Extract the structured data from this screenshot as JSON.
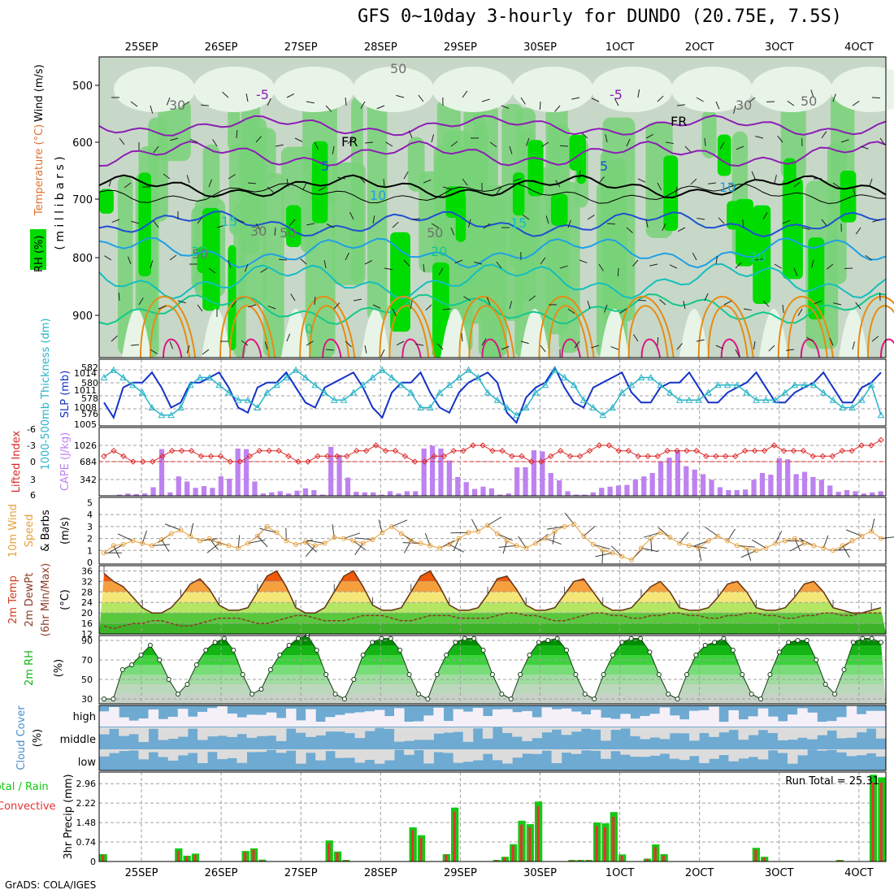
{
  "title": "GFS 0~10day 3-hourly for DUNDO (20.75E, 7.5S)",
  "credit": "GrADS: COLA/IGES",
  "x_axis": {
    "dates": [
      "25SEP",
      "26SEP",
      "27SEP",
      "28SEP",
      "29SEP",
      "30SEP",
      "1OCT",
      "2OCT",
      "3OCT",
      "4OCT"
    ],
    "top_labels": [
      "25SEP",
      "26SEP",
      "27SEP",
      "28SEP",
      "29SEP",
      "30SEP",
      "1OCT",
      "2OCT",
      "3OCT",
      "4OCT"
    ],
    "bottom_labels": [
      "25SEP",
      "26SEP",
      "27SEP",
      "28SEP",
      "29SEP",
      "30SEP",
      "1OCT",
      "2OCT",
      "3OCT",
      "4OCT"
    ]
  },
  "colors": {
    "rh_dark": "#00dc00",
    "rh_mid": "#78d278",
    "rh_light": "#c8d8c8",
    "rh_pale": "#e8f4e8",
    "temp_purple": "#8c1eb4",
    "temp_black": "#000000",
    "temp_blue": "#1e50d2",
    "temp_sky": "#1ea0e6",
    "temp_teal": "#14bebe",
    "temp_green": "#14c88c",
    "temp_orange": "#e68c14",
    "temp_magenta": "#dc1482",
    "slp_line": "#1432c8",
    "thickness_line": "#28b4c8",
    "cape_bar": "#be82f0",
    "li_line": "#dc2828",
    "wind_speed": "#e6a03c",
    "barb": "#3c3c3c",
    "cloud_blue": "#6eaad2",
    "cloud_gray": "#dcdcdc",
    "cloud_white": "#f5f0f8",
    "precip_total": "#14c814",
    "precip_conv": "#e63232"
  },
  "panels": {
    "profile": {
      "ylabel_rh": "RH (%)",
      "ylabel_temp": "Temperature (°C)",
      "ylabel_wind": "Wind (m/s)",
      "ylabel_pressure": "( m i l l i b a r s )",
      "y_ticks": [
        "500",
        "600",
        "700",
        "800",
        "900"
      ],
      "contour_labels": [
        "-5",
        "-5",
        "FR",
        "FR",
        "5",
        "5",
        "10",
        "10",
        "15",
        "15",
        "20",
        "20",
        "20",
        "50",
        "50",
        "30",
        "30",
        "50",
        "50",
        "30",
        "50",
        "0"
      ]
    },
    "slp": {
      "ylabel_left": "1000-500mb Thickness (dm)",
      "ylabel_right": "SLP (mb)",
      "left_ticks": [
        "582",
        "580",
        "578",
        "576"
      ],
      "right_ticks": [
        "1014",
        "1011",
        "1008",
        "1005"
      ]
    },
    "cape": {
      "ylabel_left": "Lifted Index",
      "ylabel_right": "CAPE (J/kg)",
      "left_ticks": [
        "-6",
        "-3",
        "0",
        "3",
        "6"
      ],
      "right_ticks": [
        "1026",
        "684",
        "342"
      ]
    },
    "wind10m": {
      "ylabel_a": "10m Wind",
      "ylabel_b": "Speed",
      "ylabel_c": "& Barbs",
      "unit": "(m/s)",
      "ticks": [
        "5",
        "4",
        "3",
        "2",
        "1",
        "0"
      ]
    },
    "temp2m": {
      "ylabel_a": "2m Temp",
      "ylabel_b": "2m DewPt",
      "ylabel_c": "(6hr Min/Max)",
      "unit": "(°C)",
      "ticks": [
        "36",
        "32",
        "28",
        "24",
        "20",
        "16",
        "12"
      ]
    },
    "rh2m": {
      "ylabel": "2m RH",
      "unit": "(%)",
      "ticks": [
        "90",
        "70",
        "50",
        "30"
      ]
    },
    "cloud": {
      "ylabel": "Cloud Cover",
      "unit": "(%)",
      "levels": [
        "high",
        "middle",
        "low"
      ]
    },
    "precip": {
      "ylabel_a": "Total / Rain",
      "ylabel_b": "Convective",
      "ylabel_c": "3hr Precip (mm)",
      "ticks": [
        "2.96",
        "2.22",
        "1.48",
        "0.74",
        "0"
      ],
      "run_total": "Run Total = 25.31"
    }
  },
  "chart_data": [
    {
      "type": "line",
      "panel": "slp_thickness",
      "series": [
        {
          "name": "SLP (mb)",
          "axis": "right",
          "values": [
            1008,
            1005,
            1011,
            1012,
            1012,
            1014,
            1011,
            1007,
            1008,
            1012,
            1012,
            1013,
            1014,
            1011,
            1007,
            1006,
            1011,
            1012,
            1012,
            1014,
            1011,
            1008,
            1007,
            1011,
            1012,
            1013,
            1014,
            1011,
            1007,
            1005,
            1010,
            1012,
            1012,
            1014,
            1010,
            1007,
            1006,
            1010,
            1012,
            1013,
            1014,
            1012,
            1006,
            1004,
            1009,
            1011,
            1012,
            1015,
            1011,
            1008,
            1007,
            1011,
            1012,
            1013,
            1014,
            1010,
            1008,
            1008,
            1011,
            1012,
            1012,
            1014,
            1011,
            1008,
            1008,
            1010,
            1011,
            1012,
            1014,
            1011,
            1008,
            1008,
            1010,
            1011,
            1012,
            1014,
            1011,
            1008,
            1008,
            1011,
            1012,
            1014
          ]
        },
        {
          "name": "1000-500mb Thickness (dm)",
          "axis": "left",
          "values": [
            581,
            582,
            581,
            580,
            579,
            577,
            576,
            576,
            577,
            580,
            581,
            581,
            580,
            579,
            578,
            578,
            577,
            579,
            580,
            581,
            582,
            581,
            580,
            579,
            578,
            578,
            579,
            580,
            581,
            582,
            581,
            580,
            579,
            577,
            577,
            579,
            580,
            581,
            582,
            581,
            579,
            578,
            577,
            576,
            577,
            579,
            580,
            582,
            581,
            580,
            578,
            577,
            576,
            577,
            579,
            580,
            581,
            581,
            580,
            579,
            578,
            578,
            578,
            579,
            580,
            580,
            580,
            579,
            578,
            578,
            578,
            579,
            580,
            580,
            580,
            579,
            578,
            577,
            577,
            578,
            580,
            576
          ]
        }
      ],
      "ylim_left": [
        575,
        583
      ],
      "ylim_right": [
        1004,
        1016
      ]
    },
    {
      "type": "bar",
      "panel": "cape_li",
      "series": [
        {
          "name": "CAPE (J/kg)",
          "values": [
            0,
            0,
            20,
            40,
            30,
            40,
            150,
            820,
            60,
            340,
            250,
            140,
            170,
            140,
            340,
            300,
            830,
            820,
            250,
            40,
            60,
            80,
            40,
            90,
            130,
            100,
            20,
            860,
            720,
            320,
            70,
            60,
            60,
            20,
            80,
            40,
            80,
            80,
            830,
            880,
            830,
            620,
            330,
            240,
            120,
            160,
            130,
            20,
            40,
            500,
            500,
            800,
            780,
            400,
            270,
            80,
            20,
            20,
            60,
            140,
            160,
            180,
            190,
            290,
            340,
            400,
            600,
            670,
            800,
            520,
            460,
            380,
            280,
            150,
            100,
            100,
            110,
            280,
            400,
            370,
            660,
            640,
            380,
            420,
            330,
            280,
            180,
            70,
            100,
            80,
            40,
            60,
            80
          ]
        },
        {
          "name": "Lifted Index",
          "values": [
            -1,
            -2,
            -1,
            0,
            0,
            0,
            -1,
            -2,
            -2,
            -2,
            -1,
            -1,
            -1,
            0,
            0,
            -1,
            -2,
            -2,
            -2,
            -1,
            0,
            0,
            -1,
            -1,
            -1,
            -1,
            -2,
            -2,
            -3,
            -2,
            -2,
            -1,
            0,
            0,
            -1,
            -1,
            -2,
            -2,
            -3,
            -3,
            -2,
            -2,
            -1,
            -1,
            0,
            0,
            -1,
            -2,
            -1,
            -1,
            -2,
            -3,
            -3,
            -2,
            -2,
            -1,
            -1,
            -1,
            -2,
            -2,
            -2,
            -2,
            -1,
            -1,
            -1,
            -1,
            -2,
            -2,
            -2,
            -3,
            -2,
            -2,
            -2,
            -1,
            -1,
            -1,
            -2,
            -2,
            -3,
            -3,
            -4
          ]
        }
      ],
      "ylim_cape": [
        0,
        1200
      ],
      "ylim_li": [
        6,
        -6
      ]
    },
    {
      "type": "line",
      "panel": "wind10m",
      "series": [
        {
          "name": "10m Wind Speed",
          "values": [
            0.8,
            1.4,
            1.5,
            1.8,
            1.6,
            1.4,
            1.9,
            2.4,
            2.7,
            2.2,
            1.8,
            2.0,
            1.6,
            1.4,
            1.2,
            1.6,
            2.2,
            3.0,
            2.5,
            1.8,
            1.5,
            1.7,
            1.4,
            1.6,
            2.1,
            2.0,
            1.8,
            1.6,
            1.9,
            2.5,
            3.0,
            2.4,
            1.8,
            1.6,
            1.4,
            1.2,
            1.5,
            2.0,
            2.5,
            2.6,
            3.1,
            2.4,
            1.8,
            1.4,
            1.2,
            1.6,
            2.0,
            2.6,
            3.0,
            3.2,
            2.2,
            1.5,
            1.0,
            0.8,
            0.5,
            0.2,
            1.2,
            2.0,
            2.5,
            2.1,
            1.6,
            1.4,
            1.2,
            1.8,
            2.2,
            1.8,
            1.4,
            1.2,
            1.0,
            1.2,
            1.6,
            1.8,
            2.0,
            1.6,
            1.4,
            1.2,
            1.0,
            1.4,
            1.8,
            2.2,
            2.6,
            2.0
          ]
        }
      ],
      "ylim": [
        0,
        5
      ]
    },
    {
      "type": "area",
      "panel": "temp2m",
      "series": [
        {
          "name": "2m Temp",
          "values": [
            35,
            32,
            30,
            26,
            22,
            20,
            20,
            22,
            26,
            31,
            33,
            29,
            23,
            21,
            21,
            22,
            28,
            34,
            36,
            30,
            22,
            20,
            20,
            22,
            28,
            34,
            36,
            30,
            23,
            21,
            21,
            22,
            28,
            34,
            36,
            30,
            23,
            21,
            21,
            22,
            27,
            33,
            34,
            29,
            23,
            21,
            21,
            22,
            27,
            32,
            33,
            28,
            23,
            21,
            21,
            22,
            26,
            30,
            32,
            28,
            22,
            21,
            21,
            22,
            26,
            31,
            32,
            28,
            22,
            21,
            21,
            22,
            26,
            31,
            32,
            28,
            22,
            21,
            20,
            20,
            21,
            22
          ]
        },
        {
          "name": "2m DewPt",
          "values": [
            15,
            14,
            15,
            16,
            16,
            17,
            17,
            16,
            15,
            15,
            16,
            17,
            18,
            18,
            18,
            17,
            16,
            16,
            17,
            18,
            19,
            19,
            18,
            17,
            17,
            17,
            18,
            19,
            19,
            19,
            18,
            17,
            17,
            18,
            19,
            19,
            19,
            18,
            18,
            18,
            18,
            19,
            20,
            20,
            19,
            19,
            18,
            17,
            17,
            18,
            19,
            20,
            20,
            19,
            19,
            18,
            18,
            19,
            19,
            20,
            20,
            19,
            19,
            18,
            18,
            19,
            19,
            20,
            20,
            19,
            19,
            18,
            18,
            19,
            19,
            20,
            20,
            19,
            19,
            20,
            20,
            20
          ]
        }
      ],
      "ylim": [
        12,
        38
      ]
    },
    {
      "type": "area",
      "panel": "rh2m",
      "series": [
        {
          "name": "2m RH",
          "values": [
            30,
            30,
            60,
            65,
            75,
            85,
            70,
            50,
            35,
            45,
            65,
            80,
            88,
            92,
            80,
            55,
            35,
            40,
            60,
            75,
            85,
            92,
            95,
            80,
            55,
            35,
            30,
            50,
            75,
            88,
            92,
            92,
            80,
            55,
            35,
            30,
            55,
            75,
            88,
            92,
            92,
            80,
            55,
            35,
            30,
            55,
            75,
            88,
            90,
            92,
            80,
            55,
            35,
            30,
            55,
            75,
            88,
            92,
            92,
            78,
            55,
            35,
            30,
            55,
            75,
            85,
            88,
            92,
            80,
            55,
            35,
            30,
            55,
            78,
            88,
            90,
            90,
            70,
            45,
            35,
            60,
            88,
            92,
            92,
            88
          ]
        }
      ],
      "ylim": [
        25,
        95
      ]
    },
    {
      "type": "bar",
      "panel": "precip",
      "series": [
        {
          "name": "Total",
          "values": [
            0.28,
            0,
            0,
            0,
            0,
            0,
            0,
            0,
            0,
            0.5,
            0.22,
            0.3,
            0,
            0,
            0,
            0,
            0,
            0.4,
            0.5,
            0.07,
            0,
            0,
            0,
            0,
            0,
            0,
            0,
            0.8,
            0.38,
            0.06,
            0,
            0,
            0,
            0,
            0,
            0,
            0,
            1.3,
            1.0,
            0,
            0,
            0.28,
            2.05,
            0,
            0,
            0,
            0,
            0.06,
            0.18,
            0.66,
            1.55,
            1.42,
            2.28,
            0,
            0,
            0,
            0.06,
            0.06,
            0.06,
            1.48,
            1.45,
            1.88,
            0.27,
            0,
            0,
            0.11,
            0.65,
            0.28,
            0,
            0,
            0,
            0,
            0,
            0,
            0,
            0,
            0,
            0,
            0.52,
            0.18,
            0,
            0,
            0,
            0,
            0,
            0,
            0,
            0,
            0.06,
            0,
            0,
            0,
            3.3,
            3.2
          ]
        },
        {
          "name": "Convective",
          "values": [
            0.25,
            0,
            0,
            0,
            0,
            0,
            0,
            0,
            0,
            0.4,
            0.2,
            0.25,
            0,
            0,
            0,
            0,
            0,
            0.35,
            0.45,
            0.05,
            0,
            0,
            0,
            0,
            0,
            0,
            0,
            0.7,
            0.34,
            0.05,
            0,
            0,
            0,
            0,
            0,
            0,
            0,
            1.2,
            0.9,
            0,
            0,
            0.25,
            1.9,
            0,
            0,
            0,
            0,
            0.05,
            0.16,
            0.6,
            1.4,
            1.3,
            2.1,
            0,
            0,
            0,
            0.05,
            0.05,
            0.05,
            1.35,
            1.3,
            1.7,
            0.22,
            0,
            0,
            0.1,
            0.55,
            0.22,
            0,
            0,
            0,
            0,
            0,
            0,
            0,
            0,
            0,
            0,
            0.45,
            0.15,
            0,
            0,
            0,
            0,
            0,
            0,
            0,
            0,
            0.05,
            0,
            0,
            0,
            3.0,
            3.0
          ]
        }
      ],
      "ylim": [
        0,
        3.4
      ]
    }
  ]
}
